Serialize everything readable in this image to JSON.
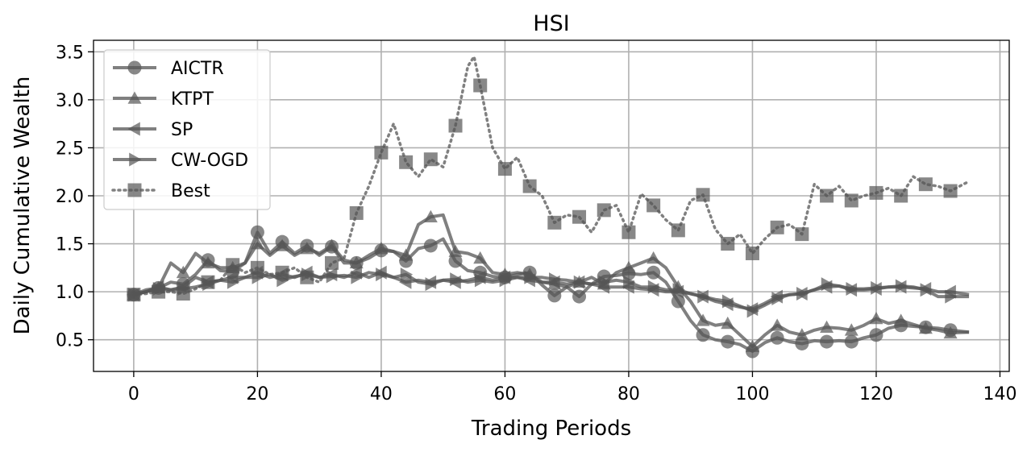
{
  "chart_data": {
    "type": "line",
    "title": "HSI",
    "xlabel": "Trading Periods",
    "ylabel": "Daily Cumulative Wealth",
    "xlim": [
      -6.5,
      141.5
    ],
    "ylim": [
      0.17,
      3.62
    ],
    "xticks": [
      0,
      20,
      40,
      60,
      80,
      100,
      120,
      140
    ],
    "xtick_labels": [
      "0",
      "20",
      "40",
      "60",
      "80",
      "100",
      "120",
      "140"
    ],
    "yticks": [
      0.5,
      1.0,
      1.5,
      2.0,
      2.5,
      3.0,
      3.5
    ],
    "ytick_labels": [
      "0.5",
      "1.0",
      "1.5",
      "2.0",
      "2.5",
      "3.0",
      "3.5"
    ],
    "grid": true,
    "legend_position": "top-left",
    "line_color": "#555555",
    "series": [
      {
        "name": "AICTR",
        "marker": "circle",
        "style": "solid",
        "x": [
          0,
          2,
          4,
          6,
          8,
          10,
          12,
          14,
          16,
          18,
          20,
          22,
          24,
          26,
          28,
          30,
          32,
          34,
          36,
          38,
          40,
          42,
          44,
          46,
          48,
          50,
          52,
          54,
          56,
          58,
          60,
          62,
          64,
          66,
          68,
          70,
          72,
          74,
          76,
          78,
          80,
          82,
          84,
          86,
          88,
          90,
          92,
          94,
          96,
          98,
          100,
          102,
          104,
          106,
          108,
          110,
          112,
          114,
          116,
          118,
          120,
          122,
          124,
          126,
          128,
          130,
          132,
          135
        ],
        "y": [
          0.97,
          1.0,
          1.04,
          1.1,
          1.08,
          1.18,
          1.33,
          1.22,
          1.21,
          1.3,
          1.62,
          1.4,
          1.52,
          1.4,
          1.48,
          1.38,
          1.47,
          1.3,
          1.3,
          1.35,
          1.43,
          1.42,
          1.32,
          1.45,
          1.48,
          1.55,
          1.32,
          1.22,
          1.2,
          1.16,
          1.15,
          1.18,
          1.2,
          1.07,
          0.96,
          1.05,
          0.95,
          1.08,
          1.16,
          1.17,
          1.19,
          1.18,
          1.2,
          1.1,
          0.9,
          0.7,
          0.55,
          0.5,
          0.48,
          0.45,
          0.38,
          0.47,
          0.52,
          0.48,
          0.46,
          0.49,
          0.48,
          0.49,
          0.48,
          0.52,
          0.55,
          0.62,
          0.65,
          0.64,
          0.63,
          0.62,
          0.6,
          0.58
        ]
      },
      {
        "name": "KTPT",
        "marker": "triangle-up",
        "style": "solid",
        "x": [
          0,
          2,
          4,
          6,
          8,
          10,
          12,
          14,
          16,
          18,
          20,
          22,
          24,
          26,
          28,
          30,
          32,
          34,
          36,
          38,
          40,
          42,
          44,
          46,
          48,
          50,
          52,
          54,
          56,
          58,
          60,
          62,
          64,
          66,
          68,
          70,
          72,
          74,
          76,
          78,
          80,
          82,
          84,
          86,
          88,
          90,
          92,
          94,
          96,
          98,
          100,
          102,
          104,
          106,
          108,
          110,
          112,
          114,
          116,
          118,
          120,
          122,
          124,
          126,
          128,
          130,
          132,
          135
        ],
        "y": [
          0.97,
          1.02,
          1.04,
          1.3,
          1.2,
          1.4,
          1.3,
          1.25,
          1.25,
          1.3,
          1.5,
          1.38,
          1.48,
          1.38,
          1.45,
          1.4,
          1.48,
          1.33,
          1.3,
          1.38,
          1.45,
          1.42,
          1.38,
          1.7,
          1.78,
          1.8,
          1.42,
          1.4,
          1.35,
          1.2,
          1.18,
          1.2,
          1.18,
          1.1,
          1.08,
          1.05,
          1.1,
          1.15,
          1.08,
          1.2,
          1.25,
          1.3,
          1.35,
          1.25,
          1.05,
          0.9,
          0.7,
          0.65,
          0.67,
          0.55,
          0.43,
          0.55,
          0.65,
          0.58,
          0.55,
          0.6,
          0.63,
          0.62,
          0.6,
          0.65,
          0.72,
          0.67,
          0.7,
          0.66,
          0.62,
          0.6,
          0.57,
          0.58
        ]
      },
      {
        "name": "SP",
        "marker": "triangle-left",
        "style": "solid",
        "x": [
          0,
          2,
          4,
          6,
          8,
          10,
          12,
          14,
          16,
          18,
          20,
          22,
          24,
          26,
          28,
          30,
          32,
          34,
          36,
          38,
          40,
          42,
          44,
          46,
          48,
          50,
          52,
          54,
          56,
          58,
          60,
          62,
          64,
          66,
          68,
          70,
          72,
          74,
          76,
          78,
          80,
          82,
          84,
          86,
          88,
          90,
          92,
          94,
          96,
          98,
          100,
          102,
          104,
          106,
          108,
          110,
          112,
          114,
          116,
          118,
          120,
          122,
          124,
          126,
          128,
          130,
          132,
          135
        ],
        "y": [
          0.97,
          1.0,
          1.05,
          1.02,
          1.05,
          1.15,
          1.1,
          1.12,
          1.15,
          1.15,
          1.2,
          1.15,
          1.18,
          1.15,
          1.2,
          1.15,
          1.18,
          1.15,
          1.2,
          1.15,
          1.2,
          1.15,
          1.1,
          1.12,
          1.1,
          1.12,
          1.1,
          1.12,
          1.15,
          1.12,
          1.15,
          1.15,
          1.12,
          1.1,
          1.1,
          1.08,
          1.1,
          1.08,
          1.05,
          1.05,
          1.05,
          1.03,
          1.02,
          1.0,
          1.0,
          0.98,
          0.95,
          0.9,
          0.87,
          0.84,
          0.82,
          0.88,
          0.95,
          0.97,
          0.98,
          1.02,
          1.05,
          1.06,
          1.02,
          1.02,
          1.03,
          1.05,
          1.05,
          1.04,
          1.03,
          1.0,
          1.0,
          0.97
        ]
      },
      {
        "name": "CW-OGD",
        "marker": "triangle-right",
        "style": "solid",
        "x": [
          0,
          2,
          4,
          6,
          8,
          10,
          12,
          14,
          16,
          18,
          20,
          22,
          24,
          26,
          28,
          30,
          32,
          34,
          36,
          38,
          40,
          42,
          44,
          46,
          48,
          50,
          52,
          54,
          56,
          58,
          60,
          62,
          64,
          66,
          68,
          70,
          72,
          74,
          76,
          78,
          80,
          82,
          84,
          86,
          88,
          90,
          92,
          94,
          96,
          98,
          100,
          102,
          104,
          106,
          108,
          110,
          112,
          114,
          116,
          118,
          120,
          122,
          124,
          126,
          128,
          130,
          132,
          135
        ],
        "y": [
          0.97,
          1.0,
          1.03,
          1.02,
          1.03,
          1.05,
          1.08,
          1.12,
          1.1,
          1.15,
          1.15,
          1.18,
          1.12,
          1.16,
          1.18,
          1.15,
          1.16,
          1.17,
          1.15,
          1.2,
          1.18,
          1.15,
          1.18,
          1.1,
          1.08,
          1.12,
          1.13,
          1.1,
          1.12,
          1.1,
          1.12,
          1.15,
          1.15,
          1.15,
          1.13,
          1.12,
          1.1,
          1.08,
          1.1,
          1.12,
          1.1,
          1.05,
          1.05,
          1.02,
          1.02,
          0.98,
          0.95,
          0.92,
          0.9,
          0.85,
          0.8,
          0.86,
          0.93,
          0.97,
          0.98,
          1.02,
          1.08,
          1.06,
          1.03,
          1.03,
          1.04,
          1.05,
          1.06,
          1.05,
          1.02,
          0.95,
          0.95,
          0.95
        ]
      },
      {
        "name": "Best",
        "marker": "square",
        "style": "dotted",
        "x": [
          0,
          2,
          4,
          6,
          8,
          10,
          12,
          14,
          16,
          18,
          20,
          22,
          24,
          26,
          28,
          30,
          32,
          34,
          36,
          38,
          40,
          42,
          44,
          46,
          48,
          50,
          52,
          54,
          55,
          56,
          58,
          60,
          62,
          64,
          66,
          68,
          70,
          72,
          74,
          76,
          78,
          80,
          82,
          84,
          86,
          88,
          90,
          92,
          94,
          96,
          98,
          100,
          102,
          104,
          106,
          108,
          110,
          112,
          114,
          116,
          118,
          120,
          122,
          124,
          126,
          128,
          130,
          132,
          135
        ],
        "y": [
          0.97,
          0.98,
          1.0,
          1.0,
          0.98,
          1.03,
          1.1,
          1.12,
          1.28,
          1.2,
          1.25,
          1.18,
          1.2,
          1.25,
          1.15,
          1.1,
          1.3,
          1.35,
          1.82,
          2.1,
          2.45,
          2.75,
          2.35,
          2.2,
          2.38,
          2.3,
          2.73,
          3.35,
          3.45,
          3.15,
          2.5,
          2.28,
          2.4,
          2.1,
          2.0,
          1.72,
          1.8,
          1.78,
          1.62,
          1.85,
          1.9,
          1.62,
          2.02,
          1.9,
          1.75,
          1.64,
          1.95,
          2.01,
          1.65,
          1.5,
          1.6,
          1.4,
          1.55,
          1.67,
          1.7,
          1.6,
          2.12,
          2.0,
          2.1,
          1.95,
          2.0,
          2.03,
          2.08,
          2.0,
          2.2,
          2.12,
          2.1,
          2.05,
          2.15
        ]
      }
    ]
  }
}
